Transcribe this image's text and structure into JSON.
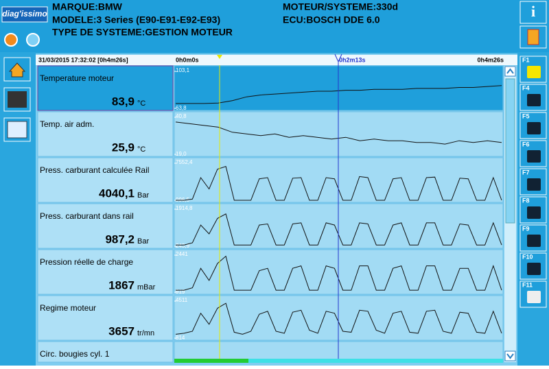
{
  "header": {
    "logo": "diag'issimo",
    "brand": "MARQUE:BMW",
    "model": "MODELE:3 Series (E90-E91-E92-E93)",
    "system_type": "TYPE DE SYSTEME:GESTION MOTEUR",
    "engine": "MOTEUR/SYSTEME:330d",
    "ecu": "ECU:BOSCH DDE 6.0"
  },
  "timebar": {
    "timestamp": "31/03/2015 17:32:02  [0h4m26s]",
    "start": "0h0m0s",
    "cursor": "0h2m13s",
    "end": "0h4m26s"
  },
  "rows": [
    {
      "label": "Temperature moteur",
      "value": "83,9",
      "unit": "°C",
      "yticks": [
        {
          "value": 63.8,
          "label": "63,8"
        },
        {
          "value": 103.1,
          "label": "103,1"
        }
      ],
      "trace": [
        69,
        69,
        69,
        69.5,
        72,
        76,
        78,
        79,
        80,
        81,
        82,
        82,
        83,
        83,
        84,
        84,
        84,
        85,
        85,
        85,
        86,
        86,
        87,
        88
      ]
    },
    {
      "label": "Temp. air adm.",
      "value": "25,9",
      "unit": "°C",
      "yticks": [
        {
          "value": 19.0,
          "label": "19,0"
        },
        {
          "value": 40.8,
          "label": "40,8"
        }
      ],
      "trace": [
        38,
        37,
        36,
        35,
        32,
        31,
        30,
        31,
        29,
        30,
        29,
        28,
        29,
        27,
        28,
        27,
        27,
        26,
        26,
        25,
        27,
        26,
        27,
        26
      ]
    },
    {
      "label": "Press. carburant calculée Rail",
      "value": "4040,1",
      "unit": "Bar",
      "yticks": [
        {
          "value": 996.5,
          "label": "996,5"
        },
        {
          "value": 7552.4,
          "label": "7552,4"
        }
      ],
      "trace": [
        1000,
        1000,
        1200,
        5000,
        3000,
        6500,
        7000,
        1000,
        1000,
        1000,
        4800,
        5000,
        1000,
        1000,
        4900,
        5000,
        1000,
        1000,
        5000,
        4800,
        1000,
        1000,
        5200,
        5000,
        1000,
        1000,
        4800,
        5000,
        1000,
        1000,
        5000,
        5100,
        1000,
        1000,
        4900,
        4800,
        1000,
        1000,
        5000,
        1000
      ]
    },
    {
      "label": "Press. carburant dans rail",
      "value": "987,2",
      "unit": "Bar",
      "yticks": [
        {
          "value": 243.9,
          "label": "243,9"
        },
        {
          "value": 1914.8,
          "label": "1914,8"
        }
      ],
      "trace": [
        300,
        300,
        400,
        1200,
        800,
        1500,
        1700,
        300,
        300,
        300,
        1200,
        1250,
        300,
        300,
        1250,
        1300,
        300,
        300,
        1300,
        1200,
        300,
        300,
        1300,
        1250,
        300,
        300,
        1200,
        1300,
        300,
        300,
        1300,
        1300,
        300,
        300,
        1250,
        1200,
        300,
        300,
        1300,
        300
      ]
    },
    {
      "label": "Pression réelle de charge",
      "value": "1867",
      "unit": "mBar",
      "yticks": [
        {
          "value": 919,
          "label": "919"
        },
        {
          "value": 2441,
          "label": "2441"
        }
      ],
      "trace": [
        1000,
        1000,
        1100,
        1900,
        1400,
        2100,
        2400,
        1000,
        1000,
        1000,
        1800,
        1900,
        1000,
        1000,
        1900,
        2000,
        1000,
        1000,
        2000,
        1900,
        1000,
        1000,
        2000,
        2000,
        1000,
        1000,
        1900,
        2000,
        1000,
        1000,
        2000,
        2000,
        1000,
        1000,
        1900,
        1900,
        1000,
        1000,
        2000,
        1000
      ]
    },
    {
      "label": "Regime moteur",
      "value": "3657",
      "unit": "tr/mn",
      "yticks": [
        {
          "value": 814,
          "label": "814"
        },
        {
          "value": 4511,
          "label": "4511"
        }
      ],
      "trace": [
        1200,
        1300,
        1500,
        3300,
        2200,
        3800,
        4300,
        1400,
        1200,
        1500,
        3200,
        3500,
        1500,
        1300,
        3400,
        3600,
        1600,
        1300,
        3500,
        3300,
        1500,
        1400,
        3600,
        3500,
        1600,
        1300,
        3300,
        3500,
        1400,
        1300,
        3500,
        3600,
        1500,
        1300,
        3400,
        3300,
        1400,
        1300,
        3500,
        1300
      ]
    },
    {
      "label": "Circ. bougies cyl. 1"
    }
  ],
  "fkeys": [
    "F1",
    "F4",
    "F5",
    "F6",
    "F7",
    "F8",
    "F9",
    "F10",
    "F11"
  ]
}
